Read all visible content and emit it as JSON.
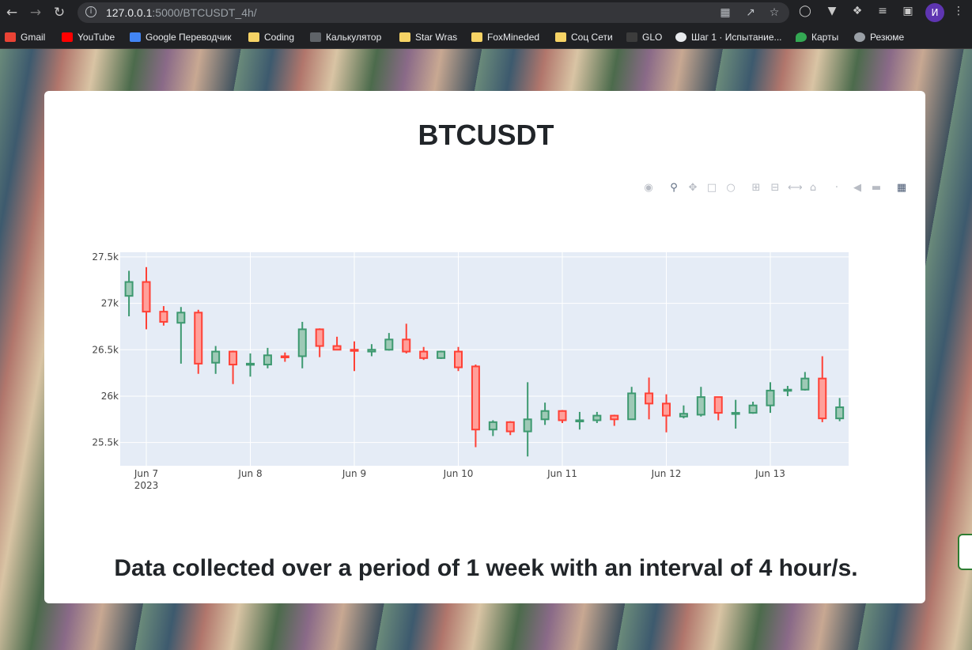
{
  "browser": {
    "url_host": "127.0.0.1",
    "url_path": ":5000/BTCUSDT_4h/",
    "profile_initial": "И",
    "bookmarks": [
      {
        "label": "Gmail",
        "color": "#ea4335"
      },
      {
        "label": "YouTube",
        "color": "#ff0000"
      },
      {
        "label": "Google Переводчик",
        "color": "#4285f4"
      },
      {
        "label": "Coding",
        "color": "#f6d365"
      },
      {
        "label": "Калькулятор",
        "color": "#5f6368"
      },
      {
        "label": "Star Wras",
        "color": "#f6d365"
      },
      {
        "label": "FoxMineded",
        "color": "#f6d365"
      },
      {
        "label": "Соц Сети",
        "color": "#f6d365"
      },
      {
        "label": "GLO",
        "color": "#ea4335"
      },
      {
        "label": "Шаг 1 · Испытание...",
        "color": "#e8eaed"
      },
      {
        "label": "Карты",
        "color": "#34a853"
      },
      {
        "label": "Резюме",
        "color": "#9aa0a6"
      }
    ]
  },
  "page": {
    "title": "BTCUSDT",
    "caption": "Data collected over a period of 1 week with an interval of 4 hour/s."
  },
  "modebar": [
    "camera-icon",
    "zoom-icon",
    "pan-icon",
    "box-select-icon",
    "lasso-icon",
    "zoom-in-icon",
    "zoom-out-icon",
    "autoscale-icon",
    "reset-axes-icon",
    "spike-lines-icon",
    "hover-closest-icon",
    "hover-compare-icon",
    "plotly-logo-icon"
  ],
  "chart_data": {
    "type": "candlestick",
    "ylim": [
      25250,
      27550
    ],
    "x_ticks": [
      {
        "day": 0,
        "label": "Jun 7",
        "sub": "2023"
      },
      {
        "day": 1,
        "label": "Jun 8",
        "sub": ""
      },
      {
        "day": 2,
        "label": "Jun 9",
        "sub": ""
      },
      {
        "day": 3,
        "label": "Jun 10",
        "sub": ""
      },
      {
        "day": 4,
        "label": "Jun 11",
        "sub": ""
      },
      {
        "day": 5,
        "label": "Jun 12",
        "sub": ""
      },
      {
        "day": 6,
        "label": "Jun 13",
        "sub": ""
      }
    ],
    "y_ticks": [
      {
        "value": 25500,
        "label": "25.5k"
      },
      {
        "value": 26000,
        "label": "26k"
      },
      {
        "value": 26500,
        "label": "26.5k"
      },
      {
        "value": 27000,
        "label": "27k"
      },
      {
        "value": 27500,
        "label": "27.5k"
      }
    ],
    "increasing_color": "#3d9970",
    "decreasing_color": "#ff4136",
    "candles": [
      {
        "t": "2023-06-06 20:00",
        "open": 27080,
        "high": 27350,
        "low": 26860,
        "close": 27230
      },
      {
        "t": "2023-06-07 00:00",
        "open": 27230,
        "high": 27390,
        "low": 26720,
        "close": 26910
      },
      {
        "t": "2023-06-07 04:00",
        "open": 26910,
        "high": 26970,
        "low": 26760,
        "close": 26800
      },
      {
        "t": "2023-06-07 08:00",
        "open": 26790,
        "high": 26960,
        "low": 26350,
        "close": 26900
      },
      {
        "t": "2023-06-07 12:00",
        "open": 26900,
        "high": 26930,
        "low": 26240,
        "close": 26350
      },
      {
        "t": "2023-06-07 16:00",
        "open": 26360,
        "high": 26540,
        "low": 26240,
        "close": 26480
      },
      {
        "t": "2023-06-07 20:00",
        "open": 26480,
        "high": 26490,
        "low": 26130,
        "close": 26340
      },
      {
        "t": "2023-06-08 00:00",
        "open": 26340,
        "high": 26460,
        "low": 26210,
        "close": 26350
      },
      {
        "t": "2023-06-08 04:00",
        "open": 26340,
        "high": 26520,
        "low": 26300,
        "close": 26440
      },
      {
        "t": "2023-06-08 08:00",
        "open": 26430,
        "high": 26470,
        "low": 26370,
        "close": 26420
      },
      {
        "t": "2023-06-08 12:00",
        "open": 26430,
        "high": 26800,
        "low": 26300,
        "close": 26720
      },
      {
        "t": "2023-06-08 16:00",
        "open": 26720,
        "high": 26730,
        "low": 26420,
        "close": 26540
      },
      {
        "t": "2023-06-08 20:00",
        "open": 26540,
        "high": 26640,
        "low": 26500,
        "close": 26500
      },
      {
        "t": "2023-06-09 00:00",
        "open": 26500,
        "high": 26590,
        "low": 26270,
        "close": 26490
      },
      {
        "t": "2023-06-09 04:00",
        "open": 26480,
        "high": 26560,
        "low": 26430,
        "close": 26500
      },
      {
        "t": "2023-06-09 08:00",
        "open": 26500,
        "high": 26680,
        "low": 26490,
        "close": 26610
      },
      {
        "t": "2023-06-09 12:00",
        "open": 26610,
        "high": 26780,
        "low": 26460,
        "close": 26480
      },
      {
        "t": "2023-06-09 16:00",
        "open": 26480,
        "high": 26530,
        "low": 26390,
        "close": 26410
      },
      {
        "t": "2023-06-09 20:00",
        "open": 26410,
        "high": 26490,
        "low": 26400,
        "close": 26480
      },
      {
        "t": "2023-06-10 00:00",
        "open": 26480,
        "high": 26530,
        "low": 26270,
        "close": 26310
      },
      {
        "t": "2023-06-10 04:00",
        "open": 26320,
        "high": 26340,
        "low": 25450,
        "close": 25640
      },
      {
        "t": "2023-06-10 08:00",
        "open": 25640,
        "high": 25740,
        "low": 25570,
        "close": 25720
      },
      {
        "t": "2023-06-10 12:00",
        "open": 25720,
        "high": 25730,
        "low": 25580,
        "close": 25620
      },
      {
        "t": "2023-06-10 16:00",
        "open": 25620,
        "high": 26150,
        "low": 25350,
        "close": 25750
      },
      {
        "t": "2023-06-10 20:00",
        "open": 25750,
        "high": 25930,
        "low": 25690,
        "close": 25840
      },
      {
        "t": "2023-06-11 00:00",
        "open": 25840,
        "high": 25850,
        "low": 25710,
        "close": 25740
      },
      {
        "t": "2023-06-11 04:00",
        "open": 25740,
        "high": 25830,
        "low": 25640,
        "close": 25740
      },
      {
        "t": "2023-06-11 08:00",
        "open": 25740,
        "high": 25830,
        "low": 25710,
        "close": 25790
      },
      {
        "t": "2023-06-11 12:00",
        "open": 25790,
        "high": 25800,
        "low": 25680,
        "close": 25750
      },
      {
        "t": "2023-06-11 16:00",
        "open": 25750,
        "high": 26100,
        "low": 25750,
        "close": 26030
      },
      {
        "t": "2023-06-11 20:00",
        "open": 26030,
        "high": 26200,
        "low": 25750,
        "close": 25920
      },
      {
        "t": "2023-06-12 00:00",
        "open": 25920,
        "high": 26020,
        "low": 25610,
        "close": 25790
      },
      {
        "t": "2023-06-12 04:00",
        "open": 25780,
        "high": 25900,
        "low": 25760,
        "close": 25810
      },
      {
        "t": "2023-06-12 08:00",
        "open": 25800,
        "high": 26100,
        "low": 25780,
        "close": 25990
      },
      {
        "t": "2023-06-12 12:00",
        "open": 25990,
        "high": 25990,
        "low": 25740,
        "close": 25820
      },
      {
        "t": "2023-06-12 16:00",
        "open": 25820,
        "high": 25960,
        "low": 25650,
        "close": 25820
      },
      {
        "t": "2023-06-12 20:00",
        "open": 25820,
        "high": 25940,
        "low": 25810,
        "close": 25900
      },
      {
        "t": "2023-06-13 00:00",
        "open": 25900,
        "high": 26150,
        "low": 25820,
        "close": 26060
      },
      {
        "t": "2023-06-13 04:00",
        "open": 26060,
        "high": 26110,
        "low": 26000,
        "close": 26070
      },
      {
        "t": "2023-06-13 08:00",
        "open": 26070,
        "high": 26260,
        "low": 26060,
        "close": 26190
      },
      {
        "t": "2023-06-13 12:00",
        "open": 26190,
        "high": 26430,
        "low": 25720,
        "close": 25760
      },
      {
        "t": "2023-06-13 16:00",
        "open": 25760,
        "high": 25980,
        "low": 25730,
        "close": 25880
      }
    ]
  }
}
